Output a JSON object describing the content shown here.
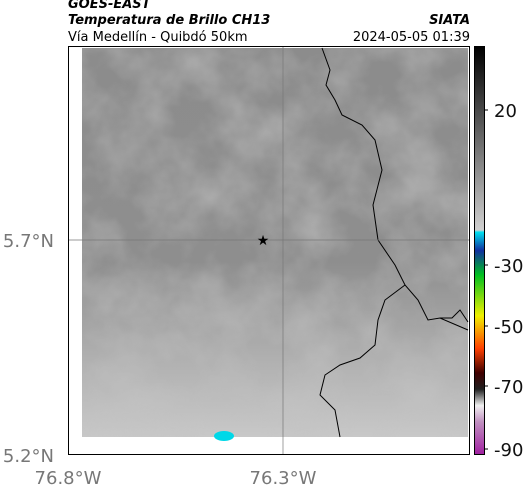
{
  "header": {
    "left_top": "GOES-EAST",
    "title": "Temperatura de Brillo CH13",
    "subtitle": "Vía Medellín - Quibdó 50km",
    "right_top": "SIATA",
    "timestamp": "2024-05-05 01:39"
  },
  "axes": {
    "y_labels": [
      "5.7°N",
      "5.2°N"
    ],
    "x_labels": [
      "76.8°W",
      "76.3°W"
    ]
  },
  "colorbar": {
    "labels": [
      "20",
      "-30",
      "-50",
      "-70",
      "-90"
    ]
  }
}
